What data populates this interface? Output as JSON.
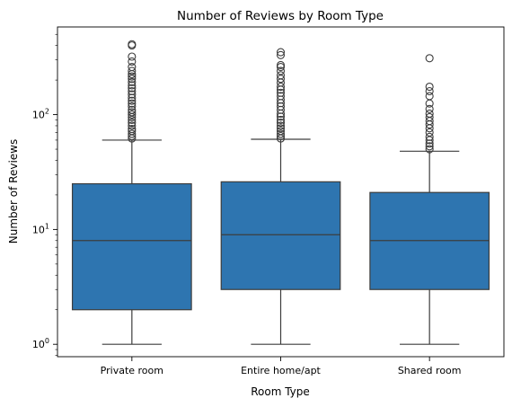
{
  "chart_data": {
    "type": "box",
    "title": "Number of Reviews by Room Type",
    "xlabel": "Room Type",
    "ylabel": "Number of Reviews",
    "yscale": "log",
    "ylim": [
      0.78,
      580
    ],
    "yticks": [
      {
        "value": 1,
        "base": "10",
        "exp": "0"
      },
      {
        "value": 10,
        "base": "10",
        "exp": "1"
      },
      {
        "value": 100,
        "base": "10",
        "exp": "2"
      }
    ],
    "grid": false,
    "color": "#2e75b0",
    "edge_color": "#3d3d3d",
    "categories": [
      "Private room",
      "Entire home/apt",
      "Shared room"
    ],
    "boxes": [
      {
        "category": "Private room",
        "whisker_low": 1,
        "q1": 2,
        "median": 8,
        "q3": 25,
        "whisker_high": 60,
        "outliers": [
          62,
          65,
          68,
          72,
          75,
          80,
          85,
          90,
          95,
          100,
          105,
          110,
          118,
          125,
          132,
          140,
          150,
          160,
          170,
          180,
          192,
          205,
          215,
          225,
          240,
          260,
          290,
          320,
          400,
          410
        ]
      },
      {
        "category": "Entire home/apt",
        "whisker_low": 1,
        "q1": 3,
        "median": 9,
        "q3": 26,
        "whisker_high": 61,
        "outliers": [
          62,
          65,
          68,
          72,
          76,
          80,
          85,
          90,
          96,
          102,
          110,
          118,
          126,
          135,
          145,
          155,
          165,
          175,
          190,
          205,
          220,
          240,
          260,
          270,
          330,
          350
        ]
      },
      {
        "category": "Shared room",
        "whisker_low": 1,
        "q1": 3,
        "median": 8,
        "q3": 21,
        "whisker_high": 48,
        "outliers": [
          50,
          53,
          56,
          60,
          64,
          70,
          76,
          82,
          88,
          95,
          102,
          112,
          125,
          145,
          160,
          175,
          310
        ]
      }
    ]
  }
}
